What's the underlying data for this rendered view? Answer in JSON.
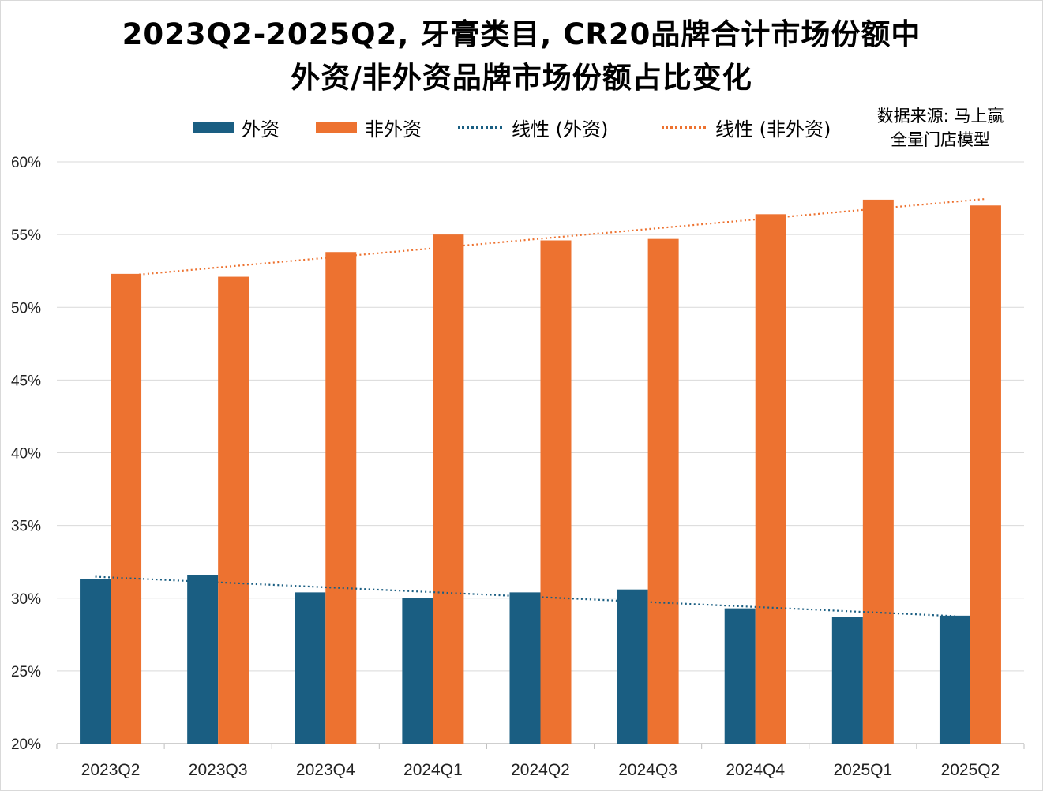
{
  "chart_data": {
    "type": "bar",
    "title_line1": "2023Q2-2025Q2, 牙膏类目, CR20品牌合计市场份额中",
    "title_line2": "外资/非外资品牌市场份额占比变化",
    "source_line1": "数据来源: 马上赢",
    "source_line2": "全量门店模型",
    "categories": [
      "2023Q2",
      "2023Q3",
      "2023Q4",
      "2024Q1",
      "2024Q2",
      "2024Q3",
      "2024Q4",
      "2025Q1",
      "2025Q2"
    ],
    "series": [
      {
        "name": "外资",
        "color": "#1a5e82",
        "values": [
          31.3,
          31.6,
          30.4,
          30.0,
          30.4,
          30.6,
          29.3,
          28.7,
          28.8
        ]
      },
      {
        "name": "非外资",
        "color": "#ed7230",
        "values": [
          52.3,
          52.1,
          53.8,
          55.0,
          54.6,
          54.7,
          56.4,
          57.4,
          57.0
        ]
      }
    ],
    "trendlines": [
      {
        "name": "线性 (外资)",
        "series": "外资",
        "color": "#1a5e82"
      },
      {
        "name": "线性 (非外资)",
        "series": "非外资",
        "color": "#ed7230"
      }
    ],
    "yticks": [
      "20%",
      "25%",
      "30%",
      "35%",
      "40%",
      "45%",
      "50%",
      "55%",
      "60%"
    ],
    "ylim": [
      20,
      60
    ],
    "grid": true,
    "legend_position": "top"
  }
}
